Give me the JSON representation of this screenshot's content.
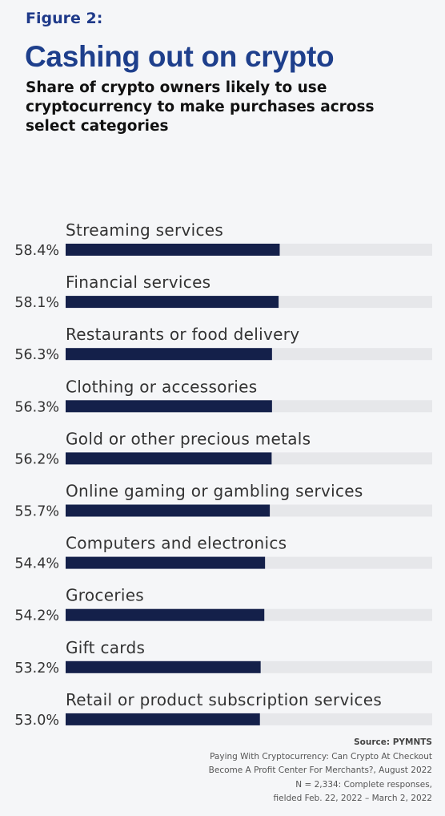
{
  "header": {
    "figure_label": "Figure 2:",
    "title": "Cashing out on crypto",
    "subtitle": "Share of crypto owners likely to use cryptocurrency to make purchases across select categories"
  },
  "chart_data": {
    "type": "bar",
    "orientation": "horizontal",
    "categories": [
      "Streaming services",
      "Financial services",
      "Restaurants or food delivery",
      "Clothing or accessories",
      "Gold or other precious metals",
      "Online gaming or gambling services",
      "Computers and electronics",
      "Groceries",
      "Gift cards",
      "Retail or product subscription services"
    ],
    "values": [
      58.4,
      58.1,
      56.3,
      56.3,
      56.2,
      55.7,
      54.4,
      54.2,
      53.2,
      53.0
    ],
    "value_labels": [
      "58.4%",
      "58.1%",
      "56.3%",
      "56.3%",
      "56.2%",
      "55.7%",
      "54.4%",
      "54.2%",
      "53.2%",
      "53.0%"
    ],
    "xlim": [
      0,
      100
    ],
    "unit": "%",
    "grid": false,
    "legend": "none",
    "colors": {
      "bar": "#14204a",
      "track": "#e6e7ea"
    }
  },
  "source": {
    "heading": "Source: PYMNTS",
    "line1": "Paying With Cryptocurrency: Can Crypto At Checkout",
    "line2": "Become A Profit Center For Merchants?, August 2022",
    "line3": "N = 2,334: Complete responses,",
    "line4": "fielded Feb. 22, 2022 – March 2, 2022"
  }
}
